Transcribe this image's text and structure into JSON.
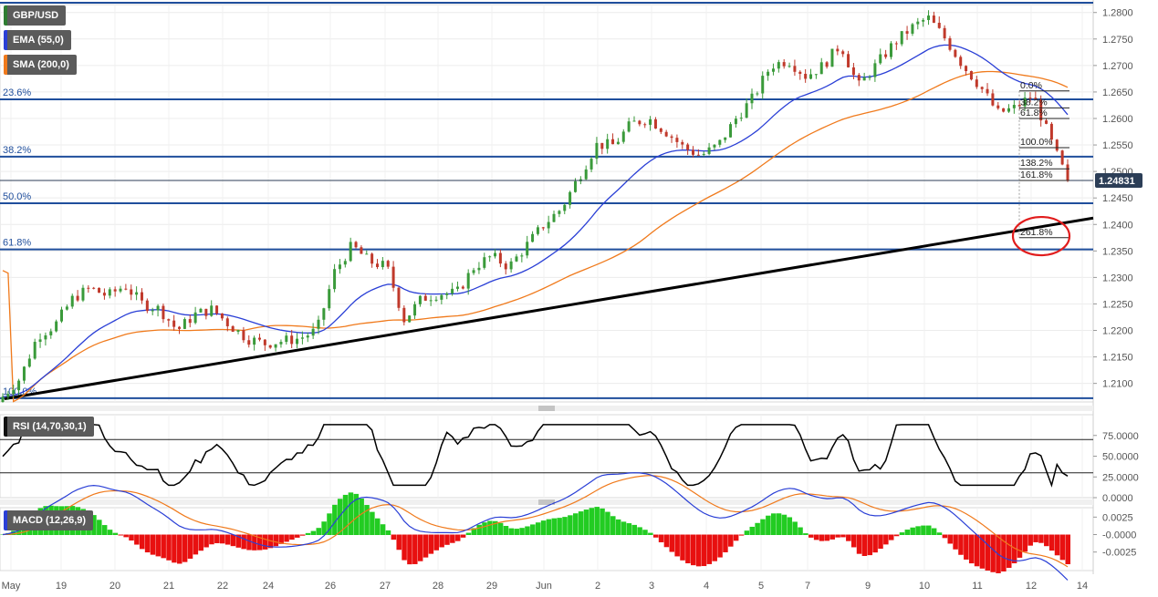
{
  "legends": {
    "symbol": "GBP/USD",
    "ema": "EMA (55,0)",
    "sma": "SMA (200,0)",
    "rsi": "RSI (14,70,30,1)",
    "macd": "MACD (12,26,9)"
  },
  "colors": {
    "ema": "#2a3fd6",
    "sma": "#f07a1c",
    "up": "#3a9a3a",
    "down": "#c0392b",
    "fib_line": "#1f4e9c",
    "trendline": "#000000",
    "last_price_bg": "#2c3e57",
    "circle": "#e11c1c",
    "macd_pos": "#22cc22",
    "macd_neg": "#e81010"
  },
  "price_panel": {
    "ylim": [
      1.2065,
      1.2815
    ],
    "ticks": [
      "1.2800",
      "1.2750",
      "1.2700",
      "1.2650",
      "1.2600",
      "1.2550",
      "1.2500",
      "1.2450",
      "1.2400",
      "1.2350",
      "1.2300",
      "1.2250",
      "1.2200",
      "1.2150",
      "1.2100"
    ],
    "last_price": "1.24831"
  },
  "fib_retracement": [
    {
      "label": "23.6%",
      "price": 1.2636
    },
    {
      "label": "38.2%",
      "price": 1.2528
    },
    {
      "label": "50.0%",
      "price": 1.244
    },
    {
      "label": "61.8%",
      "price": 1.2353
    },
    {
      "label": "100.0%",
      "price": 1.2072
    }
  ],
  "fib_extension": [
    {
      "label": "0.0%",
      "price": 1.2652
    },
    {
      "label": "38.2%",
      "price": 1.262
    },
    {
      "label": "61.8%",
      "price": 1.26
    },
    {
      "label": "100.0%",
      "price": 1.2545
    },
    {
      "label": "138.2%",
      "price": 1.2505
    },
    {
      "label": "161.8%",
      "price": 1.2483
    },
    {
      "label": "261.8%",
      "price": 1.2375
    }
  ],
  "rsi_panel": {
    "ticks": [
      "75.0000",
      "50.0000",
      "25.0000",
      "0.0000"
    ],
    "levels": [
      70,
      30
    ]
  },
  "macd_panel": {
    "ticks": [
      "0.0025",
      "-0.0000",
      "-0.0025"
    ]
  },
  "x_axis": {
    "labels": [
      "May",
      "19",
      "20",
      "21",
      "22",
      "24",
      "26",
      "27",
      "28",
      "29",
      "Jun",
      "2",
      "3",
      "4",
      "5",
      "7",
      "9",
      "10",
      "11",
      "12",
      "14"
    ]
  },
  "chart_data": {
    "type": "candlestick",
    "title": "GBP/USD",
    "ylim": [
      1.2065,
      1.2815
    ],
    "x_categories": [
      "May",
      "19",
      "20",
      "21",
      "22",
      "24",
      "26",
      "27",
      "28",
      "29",
      "Jun",
      "2",
      "3",
      "4",
      "5",
      "7",
      "9",
      "10",
      "11",
      "12",
      "14"
    ],
    "close_path": [
      [
        "May",
        1.2075
      ],
      [
        "May",
        1.211
      ],
      [
        "May",
        1.219
      ],
      [
        "19",
        1.221
      ],
      [
        "19",
        1.226
      ],
      [
        "19",
        1.228
      ],
      [
        "20",
        1.2265
      ],
      [
        "20",
        1.2285
      ],
      [
        "20",
        1.225
      ],
      [
        "21",
        1.224
      ],
      [
        "21",
        1.22
      ],
      [
        "21",
        1.223
      ],
      [
        "22",
        1.224
      ],
      [
        "22",
        1.221
      ],
      [
        "22",
        1.2185
      ],
      [
        "24",
        1.2175
      ],
      [
        "24",
        1.218
      ],
      [
        "24",
        1.2185
      ],
      [
        "26",
        1.22
      ],
      [
        "26",
        1.231
      ],
      [
        "26",
        1.236
      ],
      [
        "27",
        1.233
      ],
      [
        "27",
        1.232
      ],
      [
        "27",
        1.222
      ],
      [
        "28",
        1.226
      ],
      [
        "28",
        1.227
      ],
      [
        "28",
        1.227
      ],
      [
        "29",
        1.232
      ],
      [
        "29",
        1.234
      ],
      [
        "29",
        1.232
      ],
      [
        "Jun",
        1.236
      ],
      [
        "Jun",
        1.24
      ],
      [
        "Jun",
        1.243
      ],
      [
        "2",
        1.249
      ],
      [
        "2",
        1.255
      ],
      [
        "2",
        1.255
      ],
      [
        "3",
        1.259
      ],
      [
        "3",
        1.26
      ],
      [
        "3",
        1.2575
      ],
      [
        "4",
        1.2545
      ],
      [
        "4",
        1.253
      ],
      [
        "4",
        1.255
      ],
      [
        "5",
        1.26
      ],
      [
        "5",
        1.264
      ],
      [
        "5",
        1.27
      ],
      [
        "7",
        1.271
      ],
      [
        "7",
        1.268
      ],
      [
        "7",
        1.27
      ],
      [
        "9",
        1.274
      ],
      [
        "9",
        1.266
      ],
      [
        "9",
        1.27
      ],
      [
        "10",
        1.274
      ],
      [
        "10",
        1.277
      ],
      [
        "10",
        1.279
      ],
      [
        "11",
        1.275
      ],
      [
        "11",
        1.27
      ],
      [
        "11",
        1.266
      ],
      [
        "12",
        1.261
      ],
      [
        "12",
        1.262
      ],
      [
        "12",
        1.2645
      ],
      [
        "12",
        1.256
      ],
      [
        "12",
        1.2483
      ]
    ],
    "overlays": [
      {
        "name": "EMA (55,0)"
      },
      {
        "name": "SMA (200,0)"
      }
    ],
    "indicators": [
      {
        "name": "RSI (14,70,30,1)",
        "range": [
          0,
          100
        ]
      },
      {
        "name": "MACD (12,26,9)"
      }
    ]
  }
}
